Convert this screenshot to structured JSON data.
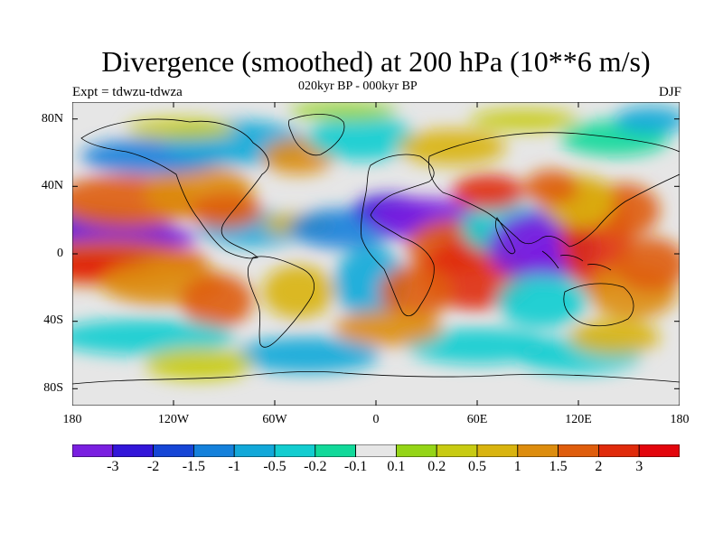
{
  "title": "Divergence (smoothed) at 200 hPa (10**6 m/s)",
  "subtitle": "020kyr BP - 000kyr BP",
  "expt_label": "Expt = tdwzu-tdwza",
  "season": "DJF",
  "lat_labels": [
    "80N",
    "40N",
    "0",
    "40S",
    "80S"
  ],
  "lon_labels": [
    "180",
    "120W",
    "60W",
    "0",
    "60E",
    "120E",
    "180"
  ],
  "colorbar": {
    "labels": [
      "-3",
      "-2",
      "-1.5",
      "-1",
      "-0.5",
      "-0.2",
      "-0.1",
      "0.1",
      "0.2",
      "0.5",
      "1",
      "1.5",
      "2",
      "3"
    ],
    "colors": [
      "#7a1fe0",
      "#3316d9",
      "#1646d6",
      "#1581db",
      "#12a8d9",
      "#13cdd0",
      "#12d99a",
      "#e6e6e6",
      "#95d517",
      "#c8cb12",
      "#d9b40f",
      "#dd8d0e",
      "#df5d0c",
      "#e02b0b",
      "#e3050c"
    ]
  },
  "map_colors": {
    "land_outline": "#000000",
    "neutral": "#e6e6e6"
  }
}
